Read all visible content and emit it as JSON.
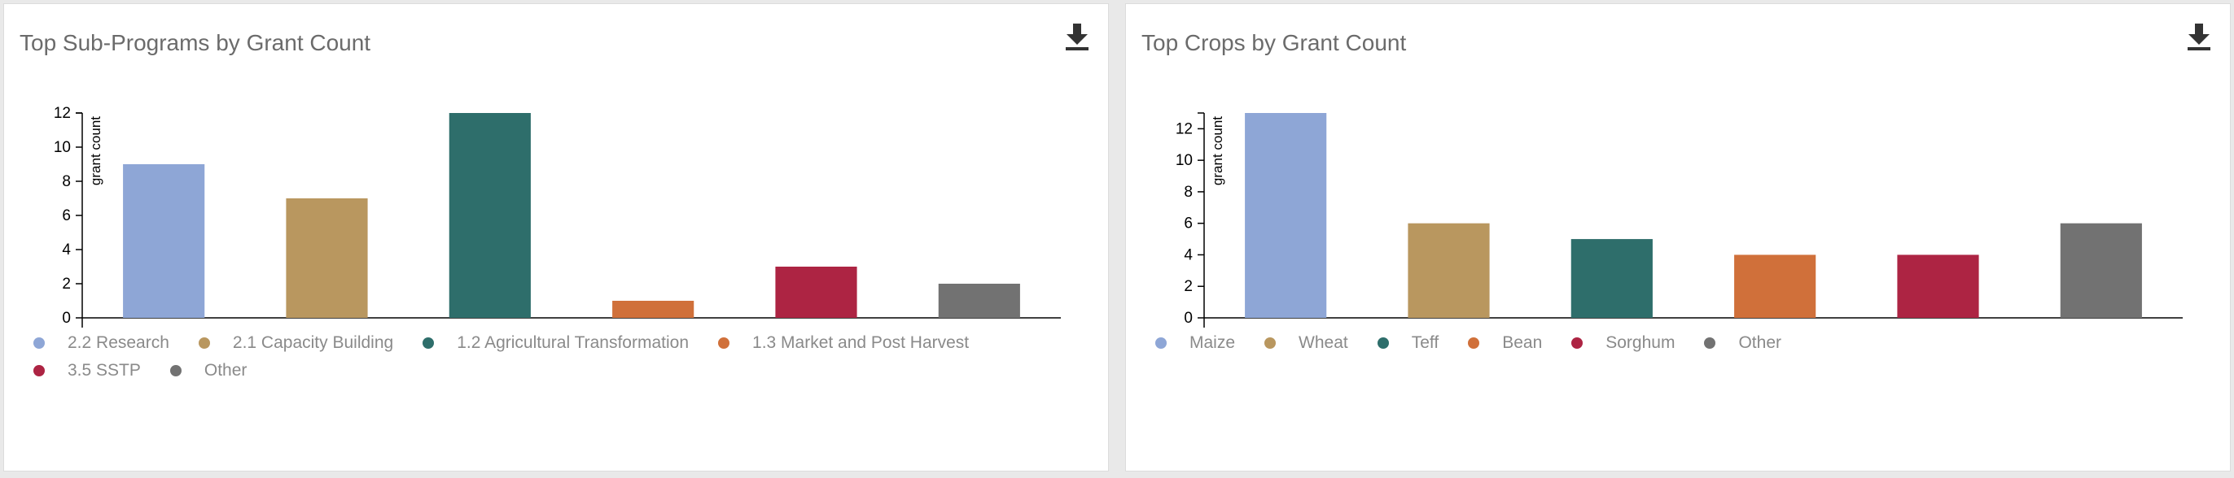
{
  "panels": [
    {
      "title": "Top Sub-Programs by Grant Count",
      "download_icon": "download-icon",
      "chart_data": {
        "type": "bar",
        "title": "Top Sub-Programs by Grant Count",
        "xlabel": "",
        "ylabel": "grant count",
        "ylim": [
          0,
          12
        ],
        "yticks": [
          0,
          2,
          4,
          6,
          8,
          10,
          12
        ],
        "grid": false,
        "legend_position": "bottom",
        "categories": [
          "2.2 Research",
          "2.1 Capacity Building",
          "1.2 Agricultural Transformation",
          "1.3 Market and Post Harvest",
          "3.5 SSTP",
          "Other"
        ],
        "values": [
          9,
          7,
          12,
          1,
          3,
          2
        ],
        "colors": [
          "#8ea6d6",
          "#b9975f",
          "#2e6e6b",
          "#d0703a",
          "#ad2443",
          "#727272"
        ]
      }
    },
    {
      "title": "Top Crops by Grant Count",
      "download_icon": "download-icon",
      "chart_data": {
        "type": "bar",
        "title": "Top Crops by Grant Count",
        "xlabel": "",
        "ylabel": "grant count",
        "ylim": [
          0,
          13
        ],
        "yticks": [
          0,
          2,
          4,
          6,
          8,
          10,
          12
        ],
        "grid": false,
        "legend_position": "bottom",
        "categories": [
          "Maize",
          "Wheat",
          "Teff",
          "Bean",
          "Sorghum",
          "Other"
        ],
        "values": [
          13,
          6,
          5,
          4,
          4,
          6
        ],
        "colors": [
          "#8ea6d6",
          "#b9975f",
          "#2e6e6b",
          "#d0703a",
          "#ad2443",
          "#727272"
        ]
      }
    }
  ]
}
